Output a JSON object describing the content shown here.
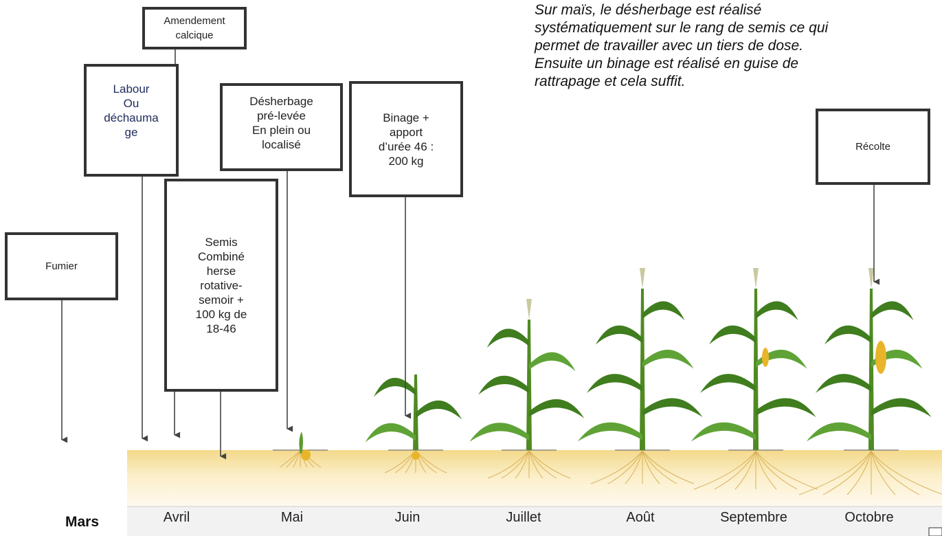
{
  "note": [
    "Sur maïs, le désherbage est réalisé",
    "systématiquement sur le rang de semis ce qui",
    "permet de travailler avec un tiers de dose.",
    "Ensuite un binage est réalisé en guise de",
    "rattrapage et cela suffit."
  ],
  "steps": [
    {
      "label": [
        "Amendement calcique"
      ]
    },
    {
      "label": [
        "Labour",
        "Ou",
        "déchauma",
        "ge"
      ]
    },
    {
      "label": [
        "Désherbage",
        "pré-levée",
        "En plein ou",
        "localisé"
      ]
    },
    {
      "label": [
        "Binage +",
        "apport",
        "d’urée 46 :",
        "200 kg"
      ]
    },
    {
      "label": [
        "Semis",
        "Combiné",
        "herse",
        "rotative-",
        "semoir +",
        "100 kg de",
        "18-46"
      ]
    },
    {
      "label": [
        "Fumier"
      ]
    },
    {
      "label": [
        "Récolte"
      ]
    }
  ],
  "months": [
    "Mars",
    "Avril",
    "Mai",
    "Juin",
    "Juillet",
    "Août",
    "Septembre",
    "Octobre"
  ]
}
